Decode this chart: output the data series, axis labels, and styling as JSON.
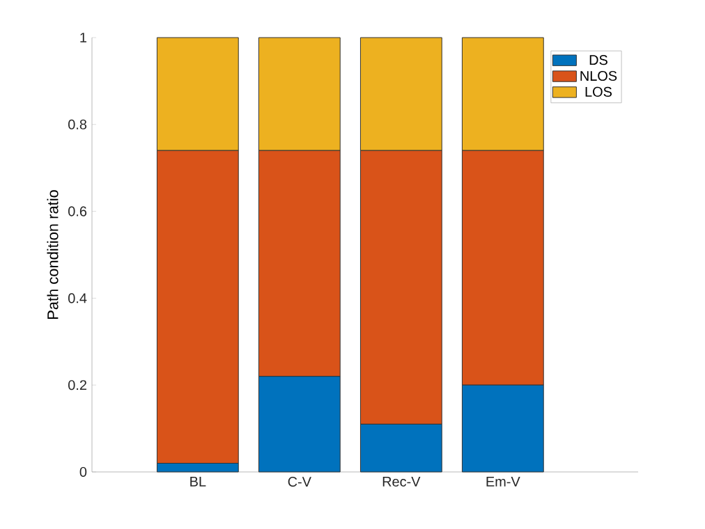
{
  "chart_data": {
    "type": "bar",
    "stacked": true,
    "ylabel": "Path condition ratio",
    "categories": [
      "BL",
      "C-V",
      "Rec-V",
      "Em-V"
    ],
    "series": [
      {
        "name": "DS",
        "color": "#0072bd",
        "values": [
          0.02,
          0.22,
          0.11,
          0.2
        ]
      },
      {
        "name": "NLOS",
        "color": "#d95319",
        "values": [
          0.72,
          0.52,
          0.63,
          0.54
        ]
      },
      {
        "name": "LOS",
        "color": "#edb120",
        "values": [
          0.26,
          0.26,
          0.26,
          0.26
        ]
      }
    ],
    "ylim": [
      0,
      1
    ],
    "yticks": [
      0,
      0.2,
      0.4,
      0.6,
      0.8,
      1
    ],
    "legend": "top right"
  }
}
